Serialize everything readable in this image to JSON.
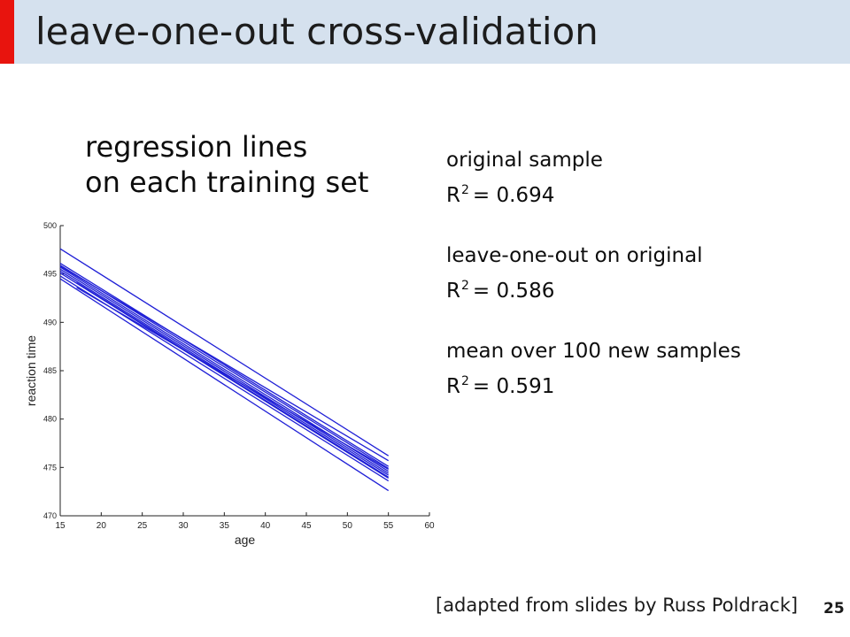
{
  "slide": {
    "title": "leave-one-out cross-validation",
    "subhead_line1": "regression lines",
    "subhead_line2": "on each training set",
    "stats": {
      "original_label": "original sample",
      "original_r": "R",
      "original_exp": "2",
      "original_value": "= 0.694",
      "loo_label": "leave-one-out on original",
      "loo_r": "R",
      "loo_exp": "2",
      "loo_value": "= 0.586",
      "mean_label": "mean over 100 new samples",
      "mean_r": "R",
      "mean_exp": "2",
      "mean_value": "= 0.591"
    },
    "credit": "[adapted from slides by Russ Poldrack]",
    "page_number": "25",
    "accent_color": "#e8140e",
    "title_bar_color": "#d5e1ee"
  },
  "chart_data": {
    "type": "line",
    "xlabel": "age",
    "ylabel": "reaction time",
    "xlim": [
      15,
      60
    ],
    "ylim": [
      470,
      500
    ],
    "xticks": [
      "15",
      "20",
      "25",
      "30",
      "35",
      "40",
      "45",
      "50",
      "55",
      "60"
    ],
    "yticks": [
      "470",
      "475",
      "480",
      "485",
      "490",
      "495",
      "500"
    ],
    "line_color": "#1f1fd6",
    "grid": false,
    "series": [
      {
        "x": [
          15,
          55
        ],
        "y": [
          497.6,
          476.2
        ]
      },
      {
        "x": [
          15,
          55
        ],
        "y": [
          496.1,
          475.1
        ]
      },
      {
        "x": [
          15,
          55
        ],
        "y": [
          495.9,
          474.9
        ]
      },
      {
        "x": [
          15,
          55
        ],
        "y": [
          495.7,
          474.6
        ]
      },
      {
        "x": [
          15,
          55
        ],
        "y": [
          495.5,
          474.4
        ]
      },
      {
        "x": [
          15,
          55
        ],
        "y": [
          495.3,
          474.2
        ]
      },
      {
        "x": [
          15,
          55
        ],
        "y": [
          495.1,
          473.9
        ]
      },
      {
        "x": [
          15,
          55
        ],
        "y": [
          494.8,
          473.6
        ]
      },
      {
        "x": [
          15,
          55
        ],
        "y": [
          495.8,
          475.7
        ]
      },
      {
        "x": [
          15,
          55
        ],
        "y": [
          494.5,
          472.6
        ]
      },
      {
        "x": [
          17,
          55
        ],
        "y": [
          494.1,
          474.0
        ]
      },
      {
        "x": [
          17,
          55
        ],
        "y": [
          493.6,
          474.8
        ]
      }
    ]
  }
}
